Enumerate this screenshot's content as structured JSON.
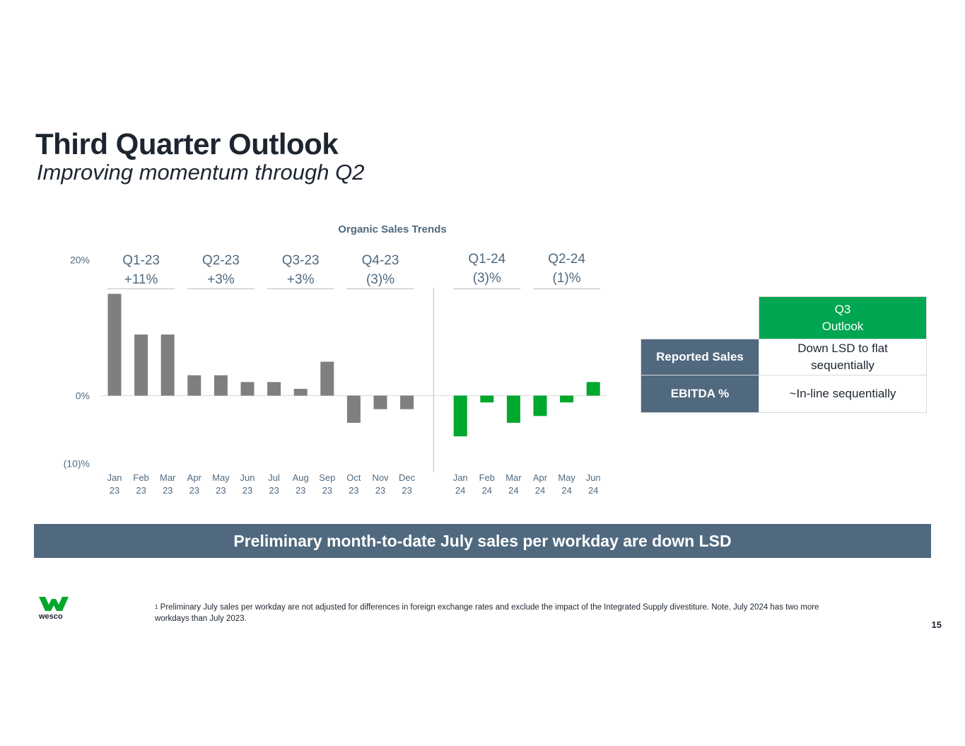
{
  "header": {
    "title": "Third Quarter Outlook",
    "subtitle": "Improving momentum through Q2"
  },
  "chart_data": {
    "type": "bar",
    "title": "Organic Sales Trends",
    "y_axis_labels": [
      "20%",
      "0%",
      "(10)%"
    ],
    "ylim": [
      -10,
      20
    ],
    "months": [
      {
        "label": [
          "Jan",
          "23"
        ],
        "value": 15,
        "color": "#7f7f7f"
      },
      {
        "label": [
          "Feb",
          "23"
        ],
        "value": 9,
        "color": "#7f7f7f"
      },
      {
        "label": [
          "Mar",
          "23"
        ],
        "value": 9,
        "color": "#7f7f7f"
      },
      {
        "label": [
          "Apr",
          "23"
        ],
        "value": 3,
        "color": "#7f7f7f"
      },
      {
        "label": [
          "May",
          "23"
        ],
        "value": 3,
        "color": "#7f7f7f"
      },
      {
        "label": [
          "Jun",
          "23"
        ],
        "value": 2,
        "color": "#7f7f7f"
      },
      {
        "label": [
          "Jul",
          "23"
        ],
        "value": 2,
        "color": "#7f7f7f"
      },
      {
        "label": [
          "Aug",
          "23"
        ],
        "value": 1,
        "color": "#7f7f7f"
      },
      {
        "label": [
          "Sep",
          "23"
        ],
        "value": 5,
        "color": "#7f7f7f"
      },
      {
        "label": [
          "Oct",
          "23"
        ],
        "value": -4,
        "color": "#7f7f7f"
      },
      {
        "label": [
          "Nov",
          "23"
        ],
        "value": -2,
        "color": "#7f7f7f"
      },
      {
        "label": [
          "Dec",
          "23"
        ],
        "value": -2,
        "color": "#7f7f7f"
      },
      {
        "label": [
          "Jan",
          "24"
        ],
        "value": -6,
        "color": "#00a82d"
      },
      {
        "label": [
          "Feb",
          "24"
        ],
        "value": -1,
        "color": "#00a82d"
      },
      {
        "label": [
          "Mar",
          "24"
        ],
        "value": -4,
        "color": "#00a82d"
      },
      {
        "label": [
          "Apr",
          "24"
        ],
        "value": -3,
        "color": "#00a82d"
      },
      {
        "label": [
          "May",
          "24"
        ],
        "value": -1,
        "color": "#00a82d"
      },
      {
        "label": [
          "Jun",
          "24"
        ],
        "value": 2,
        "color": "#00a82d"
      }
    ],
    "quarters": [
      {
        "name": "Q1-23",
        "value": "+11%",
        "months": [
          0,
          2
        ]
      },
      {
        "name": "Q2-23",
        "value": "+3%",
        "months": [
          3,
          5
        ]
      },
      {
        "name": "Q3-23",
        "value": "+3%",
        "months": [
          6,
          8
        ]
      },
      {
        "name": "Q4-23",
        "value": "(3)%",
        "months": [
          9,
          11
        ]
      },
      {
        "name": "Q1-24",
        "value": "(3)%",
        "months": [
          12,
          14
        ]
      },
      {
        "name": "Q2-24",
        "value": "(1)%",
        "months": [
          15,
          17
        ]
      }
    ]
  },
  "outlook_table": {
    "header_line1": "Q3",
    "header_line2": "Outlook",
    "rows": [
      {
        "label": "Reported Sales",
        "value_line1": "Down LSD to flat",
        "value_line2": "sequentially"
      },
      {
        "label": "EBITDA %",
        "value_line1": "~In-line sequentially"
      }
    ]
  },
  "banner": {
    "text": "Preliminary month-to-date July sales per workday are down LSD"
  },
  "footnote": {
    "marker": "1",
    "text": "Preliminary July  sales per workday are not adjusted for differences in foreign exchange rates and exclude the impact of the Integrated Supply divestiture. Note, July 2024 has two more workdays than July 2023."
  },
  "logo": {
    "text": "wesco",
    "color": "#00a82d"
  },
  "page_number": "15"
}
